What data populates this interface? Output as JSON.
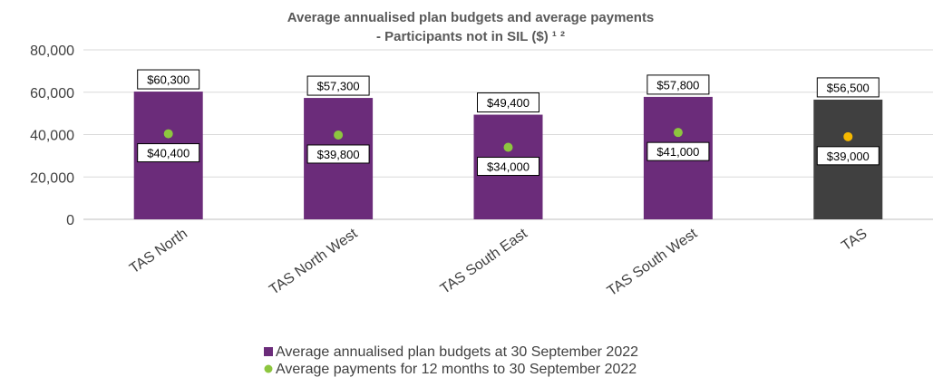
{
  "chart_data": {
    "type": "bar",
    "title": "Average annualised plan budgets and average payments",
    "subtitle": "- Participants not in SIL ($) ¹ ²",
    "categories": [
      "TAS North",
      "TAS North West",
      "TAS South East",
      "TAS South West",
      "TAS"
    ],
    "ylim": [
      0,
      80000
    ],
    "yticks": [
      0,
      20000,
      40000,
      60000,
      80000
    ],
    "ytick_labels": [
      "0",
      "20,000",
      "40,000",
      "60,000",
      "80,000"
    ],
    "grid": true,
    "legend_position": "bottom",
    "series": [
      {
        "name": "Average annualised plan budgets at 30 September 2022",
        "kind": "bar",
        "values": [
          60300,
          57300,
          49400,
          57800,
          56500
        ],
        "labels": [
          "$60,300",
          "$57,300",
          "$49,400",
          "$57,800",
          "$56,500"
        ],
        "color": "#6B2C7A",
        "highlight_color": "#404040"
      },
      {
        "name": "Average payments for 12 months to 30 September 2022",
        "kind": "scatter",
        "values": [
          40400,
          39800,
          34000,
          41000,
          39000
        ],
        "labels": [
          "$40,400",
          "$39,800",
          "$34,000",
          "$41,000",
          "$39,000"
        ],
        "color": "#8DC63F",
        "highlight_color": "#F5B800"
      }
    ]
  }
}
